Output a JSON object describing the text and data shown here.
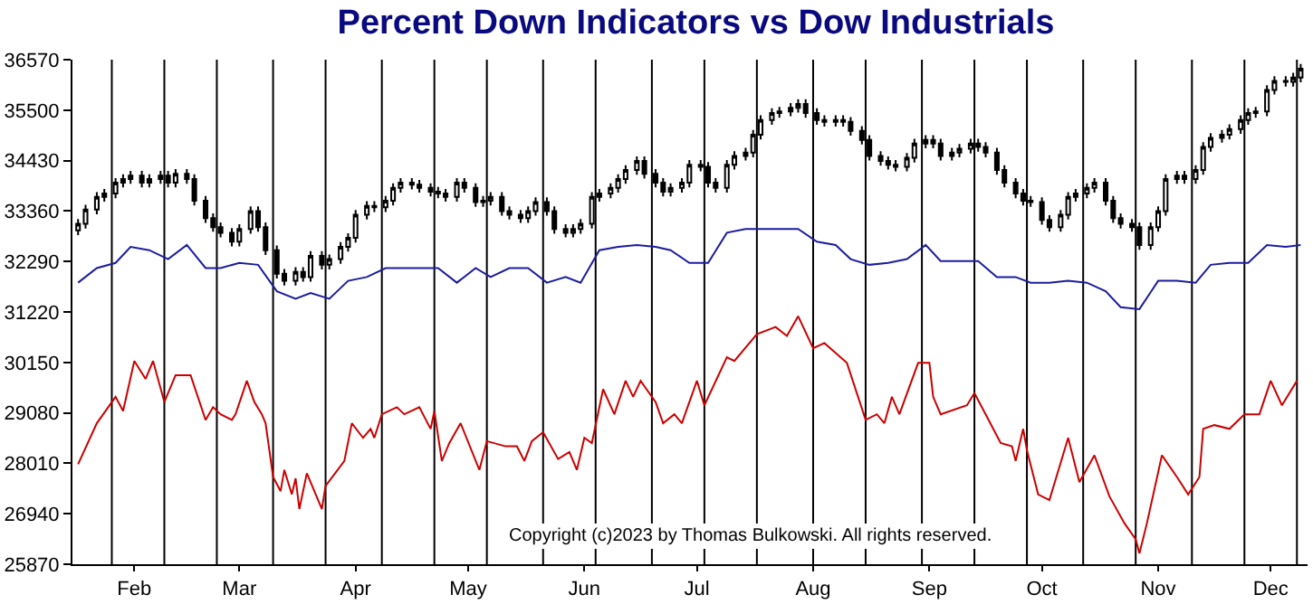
{
  "chart_data": {
    "type": "candlestick",
    "title": "Percent Down Indicators vs Dow Industrials",
    "annotations": [
      "Copyright (c)2023 by Thomas Bulkowski. All rights reserved."
    ],
    "color": "#000000",
    "xlim": [
      "2023-01-15T12:00",
      "2023-12-10T20:00"
    ],
    "xticks": [
      {
        "value": "2023-02-01",
        "label": "Feb"
      },
      {
        "value": "2023-03-01",
        "label": "Mar"
      },
      {
        "value": "2023-04-01",
        "label": "Apr"
      },
      {
        "value": "2023-05-01",
        "label": "May"
      },
      {
        "value": "2023-06-01",
        "label": "Jun"
      },
      {
        "value": "2023-07-01",
        "label": "Jul"
      },
      {
        "value": "2023-08-01",
        "label": "Aug"
      },
      {
        "value": "2023-09-01",
        "label": "Sep"
      },
      {
        "value": "2023-10-01",
        "label": "Oct"
      },
      {
        "value": "2023-11-01",
        "label": "Nov"
      },
      {
        "value": "2023-12-01",
        "label": "Dec"
      }
    ],
    "ylim": [
      25870,
      36570
    ],
    "yticks": [
      25870,
      26940,
      28010,
      29080,
      30150,
      31220,
      32290,
      33360,
      34430,
      35500,
      36570
    ],
    "ref_lines": [
      {
        "axis": "x",
        "value": "2023-01-26",
        "color": "#000000"
      },
      {
        "axis": "x",
        "value": "2023-02-09",
        "color": "#000000"
      },
      {
        "axis": "x",
        "value": "2023-02-23",
        "color": "#000000"
      },
      {
        "axis": "x",
        "value": "2023-03-10",
        "color": "#000000"
      },
      {
        "axis": "x",
        "value": "2023-03-24",
        "color": "#000000"
      },
      {
        "axis": "x",
        "value": "2023-04-08",
        "color": "#000000"
      },
      {
        "axis": "x",
        "value": "2023-04-22",
        "color": "#000000"
      },
      {
        "axis": "x",
        "value": "2023-05-06",
        "color": "#000000"
      },
      {
        "axis": "x",
        "value": "2023-05-21",
        "color": "#000000"
      },
      {
        "axis": "x",
        "value": "2023-06-04",
        "color": "#000000"
      },
      {
        "axis": "x",
        "value": "2023-06-19",
        "color": "#000000"
      },
      {
        "axis": "x",
        "value": "2023-07-03",
        "color": "#000000"
      },
      {
        "axis": "x",
        "value": "2023-07-17",
        "color": "#000000"
      },
      {
        "axis": "x",
        "value": "2023-08-01",
        "color": "#000000"
      },
      {
        "axis": "x",
        "value": "2023-08-15",
        "color": "#000000"
      },
      {
        "axis": "x",
        "value": "2023-08-30",
        "color": "#000000"
      },
      {
        "axis": "x",
        "value": "2023-09-13",
        "color": "#000000"
      },
      {
        "axis": "x",
        "value": "2023-09-27",
        "color": "#000000"
      },
      {
        "axis": "x",
        "value": "2023-10-12",
        "color": "#000000"
      },
      {
        "axis": "x",
        "value": "2023-10-26",
        "color": "#000000"
      },
      {
        "axis": "x",
        "value": "2023-11-10",
        "color": "#000000"
      },
      {
        "axis": "x",
        "value": "2023-11-24",
        "color": "#000000"
      },
      {
        "axis": "x",
        "value": "2023-12-08",
        "color": "#000000"
      }
    ],
    "x": [
      "2023-01-17",
      "2023-01-19",
      "2023-01-22",
      "2023-01-24",
      "2023-01-27",
      "2023-01-29",
      "2023-01-31",
      "2023-02-03",
      "2023-02-05",
      "2023-02-08",
      "2023-02-10",
      "2023-02-12",
      "2023-02-15",
      "2023-02-17",
      "2023-02-20",
      "2023-02-22",
      "2023-02-24",
      "2023-02-27",
      "2023-03-01",
      "2023-03-04",
      "2023-03-06",
      "2023-03-08",
      "2023-03-11",
      "2023-03-13",
      "2023-03-16",
      "2023-03-18",
      "2023-03-20",
      "2023-03-23",
      "2023-03-25",
      "2023-03-28",
      "2023-03-30",
      "2023-04-01",
      "2023-04-04",
      "2023-04-06",
      "2023-04-09",
      "2023-04-11",
      "2023-04-13",
      "2023-04-16",
      "2023-04-18",
      "2023-04-21",
      "2023-04-23",
      "2023-04-25",
      "2023-04-28",
      "2023-04-30",
      "2023-05-03",
      "2023-05-05",
      "2023-05-07",
      "2023-05-10",
      "2023-05-12",
      "2023-05-15",
      "2023-05-17",
      "2023-05-19",
      "2023-05-22",
      "2023-05-24",
      "2023-05-27",
      "2023-05-29",
      "2023-05-31",
      "2023-06-03",
      "2023-06-05",
      "2023-06-08",
      "2023-06-10",
      "2023-06-12",
      "2023-06-15",
      "2023-06-17",
      "2023-06-20",
      "2023-06-22",
      "2023-06-24",
      "2023-06-27",
      "2023-06-29",
      "2023-07-02",
      "2023-07-04",
      "2023-07-06",
      "2023-07-09",
      "2023-07-11",
      "2023-07-14",
      "2023-07-16",
      "2023-07-18",
      "2023-07-21",
      "2023-07-23",
      "2023-07-26",
      "2023-07-28",
      "2023-07-30",
      "2023-08-02",
      "2023-08-04",
      "2023-08-07",
      "2023-08-09",
      "2023-08-11",
      "2023-08-14",
      "2023-08-16",
      "2023-08-19",
      "2023-08-21",
      "2023-08-23",
      "2023-08-26",
      "2023-08-28",
      "2023-08-31",
      "2023-09-02",
      "2023-09-04",
      "2023-09-07",
      "2023-09-09",
      "2023-09-12",
      "2023-09-14",
      "2023-09-16",
      "2023-09-19",
      "2023-09-21",
      "2023-09-24",
      "2023-09-26",
      "2023-09-28",
      "2023-10-01",
      "2023-10-03",
      "2023-10-06",
      "2023-10-08",
      "2023-10-10",
      "2023-10-13",
      "2023-10-15",
      "2023-10-18",
      "2023-10-20",
      "2023-10-22",
      "2023-10-25",
      "2023-10-27",
      "2023-10-30",
      "2023-11-01",
      "2023-11-03",
      "2023-11-06",
      "2023-11-08",
      "2023-11-11",
      "2023-11-13",
      "2023-11-15",
      "2023-11-18",
      "2023-11-20",
      "2023-11-23",
      "2023-11-25",
      "2023-11-27",
      "2023-11-30",
      "2023-12-02",
      "2023-12-05",
      "2023-12-07",
      "2023-12-09"
    ],
    "ohlc": [
      [
        32950,
        33190,
        32850,
        33090
      ],
      [
        33090,
        33490,
        32990,
        33390
      ],
      [
        33390,
        33760,
        33290,
        33660
      ],
      [
        33660,
        33830,
        33560,
        33730
      ],
      [
        33730,
        34060,
        33630,
        33960
      ],
      [
        33960,
        34140,
        33860,
        34040
      ],
      [
        34040,
        34210,
        33940,
        34110
      ],
      [
        34110,
        34210,
        33860,
        33960
      ],
      [
        33960,
        34140,
        33860,
        34040
      ],
      [
        34040,
        34210,
        33940,
        34110
      ],
      [
        34110,
        34210,
        33860,
        33960
      ],
      [
        33960,
        34250,
        33860,
        34150
      ],
      [
        34150,
        34250,
        33940,
        34040
      ],
      [
        34040,
        34140,
        33480,
        33580
      ],
      [
        33580,
        33680,
        33110,
        33210
      ],
      [
        33210,
        33310,
        32920,
        33020
      ],
      [
        33020,
        33120,
        32800,
        32900
      ],
      [
        32900,
        33000,
        32610,
        32710
      ],
      [
        32710,
        33080,
        32610,
        32980
      ],
      [
        32980,
        33460,
        32880,
        33360
      ],
      [
        33360,
        33460,
        32920,
        33020
      ],
      [
        33020,
        33120,
        32430,
        32530
      ],
      [
        32530,
        32630,
        31930,
        32030
      ],
      [
        32030,
        32130,
        31780,
        31880
      ],
      [
        31880,
        32170,
        31780,
        32070
      ],
      [
        32070,
        32170,
        31860,
        31960
      ],
      [
        31960,
        32510,
        31860,
        32410
      ],
      [
        32410,
        32510,
        32120,
        32220
      ],
      [
        32220,
        32440,
        32120,
        32340
      ],
      [
        32340,
        32700,
        32240,
        32600
      ],
      [
        32600,
        32890,
        32500,
        32790
      ],
      [
        32790,
        33380,
        32690,
        33280
      ],
      [
        33280,
        33570,
        33180,
        33470
      ],
      [
        33470,
        33570,
        33340,
        33440
      ],
      [
        33440,
        33680,
        33340,
        33580
      ],
      [
        33580,
        33950,
        33480,
        33850
      ],
      [
        33850,
        34060,
        33750,
        33960
      ],
      [
        33960,
        34060,
        33820,
        33920
      ],
      [
        33920,
        34020,
        33750,
        33850
      ],
      [
        33850,
        33950,
        33670,
        33770
      ],
      [
        33770,
        33870,
        33630,
        33730
      ],
      [
        33730,
        33830,
        33560,
        33660
      ],
      [
        33660,
        34060,
        33560,
        33960
      ],
      [
        33960,
        34060,
        33750,
        33850
      ],
      [
        33850,
        33950,
        33450,
        33550
      ],
      [
        33550,
        33680,
        33450,
        33580
      ],
      [
        33580,
        33760,
        33480,
        33660
      ],
      [
        33660,
        33760,
        33260,
        33360
      ],
      [
        33360,
        33460,
        33180,
        33280
      ],
      [
        33280,
        33380,
        33110,
        33210
      ],
      [
        33210,
        33460,
        33110,
        33360
      ],
      [
        33360,
        33650,
        33260,
        33550
      ],
      [
        33550,
        33650,
        33260,
        33360
      ],
      [
        33360,
        33460,
        32880,
        32980
      ],
      [
        32980,
        33080,
        32800,
        32900
      ],
      [
        32900,
        33080,
        32800,
        32980
      ],
      [
        32980,
        33190,
        32880,
        33090
      ],
      [
        33090,
        33760,
        32990,
        33660
      ],
      [
        33660,
        33830,
        33560,
        33730
      ],
      [
        33730,
        33950,
        33630,
        33850
      ],
      [
        33850,
        34140,
        33750,
        34040
      ],
      [
        34040,
        34330,
        33940,
        34230
      ],
      [
        34230,
        34520,
        34130,
        34420
      ],
      [
        34420,
        34520,
        34050,
        34150
      ],
      [
        34150,
        34250,
        33860,
        33960
      ],
      [
        33960,
        34060,
        33670,
        33770
      ],
      [
        33770,
        33950,
        33670,
        33850
      ],
      [
        33850,
        34060,
        33750,
        33960
      ],
      [
        33960,
        34440,
        33860,
        34340
      ],
      [
        34340,
        34440,
        34200,
        34300
      ],
      [
        34300,
        34400,
        33860,
        33960
      ],
      [
        33960,
        34060,
        33750,
        33850
      ],
      [
        33850,
        34440,
        33750,
        34340
      ],
      [
        34340,
        34630,
        34240,
        34530
      ],
      [
        34530,
        34700,
        34430,
        34600
      ],
      [
        34600,
        35080,
        34500,
        34980
      ],
      [
        34980,
        35390,
        34880,
        35290
      ],
      [
        35290,
        35540,
        35190,
        35440
      ],
      [
        35440,
        35570,
        35340,
        35470
      ],
      [
        35470,
        35650,
        35370,
        35550
      ],
      [
        35550,
        35730,
        35450,
        35630
      ],
      [
        35630,
        35730,
        35340,
        35440
      ],
      [
        35440,
        35540,
        35190,
        35290
      ],
      [
        35290,
        35390,
        35150,
        35250
      ],
      [
        35250,
        35390,
        35150,
        35290
      ],
      [
        35290,
        35390,
        35150,
        35250
      ],
      [
        35250,
        35350,
        34960,
        35060
      ],
      [
        35060,
        35160,
        34770,
        34870
      ],
      [
        34870,
        34970,
        34430,
        34530
      ],
      [
        34530,
        34630,
        34320,
        34420
      ],
      [
        34420,
        34520,
        34240,
        34340
      ],
      [
        34340,
        34440,
        34200,
        34300
      ],
      [
        34300,
        34590,
        34200,
        34490
      ],
      [
        34490,
        34890,
        34390,
        34790
      ],
      [
        34790,
        34970,
        34690,
        34870
      ],
      [
        34870,
        34970,
        34690,
        34790
      ],
      [
        34790,
        34890,
        34430,
        34530
      ],
      [
        34530,
        34700,
        34430,
        34600
      ],
      [
        34600,
        34780,
        34500,
        34680
      ],
      [
        34680,
        34890,
        34580,
        34790
      ],
      [
        34790,
        34890,
        34620,
        34720
      ],
      [
        34720,
        34820,
        34500,
        34600
      ],
      [
        34600,
        34700,
        34130,
        34230
      ],
      [
        34230,
        34330,
        33860,
        33960
      ],
      [
        33960,
        34060,
        33630,
        33730
      ],
      [
        33730,
        33830,
        33480,
        33580
      ],
      [
        33580,
        33680,
        33450,
        33550
      ],
      [
        33550,
        33650,
        33070,
        33170
      ],
      [
        33170,
        33270,
        32920,
        33020
      ],
      [
        33020,
        33380,
        32920,
        33280
      ],
      [
        33280,
        33760,
        33180,
        33660
      ],
      [
        33660,
        33830,
        33560,
        33730
      ],
      [
        33730,
        33950,
        33630,
        33850
      ],
      [
        33850,
        34060,
        33750,
        33960
      ],
      [
        33960,
        34060,
        33480,
        33580
      ],
      [
        33580,
        33680,
        33110,
        33210
      ],
      [
        33210,
        33310,
        32990,
        33090
      ],
      [
        33090,
        33190,
        32920,
        33020
      ],
      [
        33020,
        33120,
        32540,
        32640
      ],
      [
        32640,
        33120,
        32540,
        33020
      ],
      [
        33020,
        33460,
        32920,
        33360
      ],
      [
        33360,
        34140,
        33260,
        34040
      ],
      [
        34040,
        34210,
        33940,
        34110
      ],
      [
        34110,
        34210,
        33940,
        34040
      ],
      [
        34040,
        34330,
        33940,
        34230
      ],
      [
        34230,
        34820,
        34130,
        34720
      ],
      [
        34720,
        35010,
        34620,
        34910
      ],
      [
        34910,
        35080,
        34810,
        34980
      ],
      [
        34980,
        35200,
        34880,
        35100
      ],
      [
        35100,
        35390,
        35000,
        35290
      ],
      [
        35290,
        35540,
        35190,
        35440
      ],
      [
        35440,
        35570,
        35340,
        35470
      ],
      [
        35470,
        36030,
        35370,
        35930
      ],
      [
        35930,
        36220,
        35830,
        36120
      ],
      [
        36120,
        36220,
        36000,
        36100
      ],
      [
        36100,
        36290,
        36000,
        36190
      ],
      [
        36190,
        36480,
        36090,
        36380
      ]
    ],
    "series": [
      {
        "type": "line",
        "color": "#1c1ca0",
        "x": [
          "2023-01-17",
          "2023-01-22",
          "2023-01-27",
          "2023-01-31",
          "2023-02-05",
          "2023-02-10",
          "2023-02-15",
          "2023-02-20",
          "2023-02-24",
          "2023-03-01",
          "2023-03-06",
          "2023-03-11",
          "2023-03-16",
          "2023-03-20",
          "2023-03-25",
          "2023-03-30",
          "2023-04-04",
          "2023-04-09",
          "2023-04-13",
          "2023-04-18",
          "2023-04-23",
          "2023-04-28",
          "2023-05-03",
          "2023-05-07",
          "2023-05-12",
          "2023-05-17",
          "2023-05-22",
          "2023-05-27",
          "2023-05-31",
          "2023-06-05",
          "2023-06-10",
          "2023-06-15",
          "2023-06-20",
          "2023-06-24",
          "2023-06-29",
          "2023-07-04",
          "2023-07-09",
          "2023-07-14",
          "2023-07-18",
          "2023-07-23",
          "2023-07-28",
          "2023-08-02",
          "2023-08-07",
          "2023-08-11",
          "2023-08-16",
          "2023-08-21",
          "2023-08-26",
          "2023-08-31",
          "2023-09-04",
          "2023-09-09",
          "2023-09-14",
          "2023-09-19",
          "2023-09-24",
          "2023-09-28",
          "2023-10-03",
          "2023-10-08",
          "2023-10-13",
          "2023-10-18",
          "2023-10-22",
          "2023-10-27",
          "2023-11-01",
          "2023-11-06",
          "2023-11-11",
          "2023-11-15",
          "2023-11-20",
          "2023-11-25",
          "2023-11-30",
          "2023-12-05",
          "2023-12-09"
        ],
        "values": [
          31840,
          32150,
          32260,
          32600,
          32530,
          32340,
          32640,
          32150,
          32150,
          32260,
          32220,
          31660,
          31500,
          31620,
          31500,
          31880,
          31960,
          32150,
          32150,
          32150,
          32150,
          31840,
          32150,
          31960,
          32150,
          32150,
          31840,
          31960,
          31840,
          32530,
          32600,
          32640,
          32600,
          32530,
          32260,
          32260,
          32900,
          32980,
          32980,
          32980,
          32980,
          32710,
          32640,
          32340,
          32220,
          32260,
          32340,
          32640,
          32300,
          32300,
          32300,
          31960,
          31960,
          31840,
          31840,
          31880,
          31840,
          31660,
          31320,
          31280,
          31880,
          31880,
          31840,
          32220,
          32260,
          32260,
          32640,
          32600,
          32640
        ]
      },
      {
        "type": "line",
        "color": "#cc0000",
        "x": [
          "2023-01-17",
          "2023-01-22",
          "2023-01-27",
          "2023-01-29",
          "2023-02-01",
          "2023-02-04",
          "2023-02-06",
          "2023-02-09",
          "2023-02-12",
          "2023-02-16",
          "2023-02-20",
          "2023-02-22",
          "2023-02-24",
          "2023-02-27",
          "2023-02-28",
          "2023-03-03",
          "2023-03-05",
          "2023-03-07",
          "2023-03-08",
          "2023-03-10",
          "2023-03-12",
          "2023-03-13",
          "2023-03-15",
          "2023-03-16",
          "2023-03-17",
          "2023-03-19",
          "2023-03-23",
          "2023-03-24",
          "2023-03-29",
          "2023-03-31",
          "2023-04-03",
          "2023-04-05",
          "2023-04-06",
          "2023-04-08",
          "2023-04-12",
          "2023-04-14",
          "2023-04-18",
          "2023-04-21",
          "2023-04-22",
          "2023-04-24",
          "2023-04-26",
          "2023-04-29",
          "2023-05-04",
          "2023-05-06",
          "2023-05-11",
          "2023-05-14",
          "2023-05-16",
          "2023-05-18",
          "2023-05-21",
          "2023-05-25",
          "2023-05-28",
          "2023-05-30",
          "2023-06-01",
          "2023-06-03",
          "2023-06-06",
          "2023-06-09",
          "2023-06-12",
          "2023-06-14",
          "2023-06-16",
          "2023-06-20",
          "2023-06-22",
          "2023-06-25",
          "2023-06-27",
          "2023-07-01",
          "2023-07-03",
          "2023-07-09",
          "2023-07-11",
          "2023-07-17",
          "2023-07-22",
          "2023-07-25",
          "2023-07-28",
          "2023-08-01",
          "2023-08-04",
          "2023-08-10",
          "2023-08-15",
          "2023-08-18",
          "2023-08-20",
          "2023-08-22",
          "2023-08-24",
          "2023-08-29",
          "2023-09-01",
          "2023-09-02",
          "2023-09-04",
          "2023-09-11",
          "2023-09-13",
          "2023-09-16",
          "2023-09-20",
          "2023-09-23",
          "2023-09-24",
          "2023-09-26",
          "2023-09-27",
          "2023-09-30",
          "2023-10-03",
          "2023-10-08",
          "2023-10-11",
          "2023-10-15",
          "2023-10-19",
          "2023-10-23",
          "2023-10-26",
          "2023-10-27",
          "2023-10-29",
          "2023-11-02",
          "2023-11-06",
          "2023-11-09",
          "2023-11-12",
          "2023-11-13",
          "2023-11-16",
          "2023-11-20",
          "2023-11-24",
          "2023-11-28",
          "2023-12-01",
          "2023-12-04",
          "2023-12-08"
        ],
        "values": [
          27990,
          28860,
          29420,
          29120,
          30180,
          29800,
          30180,
          29310,
          29880,
          29880,
          28930,
          29200,
          29050,
          28930,
          29050,
          29760,
          29310,
          29050,
          28860,
          27720,
          27420,
          27870,
          27350,
          27690,
          27040,
          27800,
          27040,
          27530,
          28060,
          28860,
          28550,
          28740,
          28550,
          29050,
          29200,
          29050,
          29200,
          28740,
          29120,
          28060,
          28440,
          28860,
          27870,
          28480,
          28370,
          28370,
          28060,
          28480,
          28670,
          28100,
          28250,
          27870,
          28550,
          28440,
          29580,
          29050,
          29760,
          29420,
          29760,
          29310,
          28860,
          29050,
          28860,
          29760,
          29240,
          30260,
          30180,
          30750,
          30900,
          30710,
          31130,
          30450,
          30560,
          30140,
          28930,
          29050,
          28860,
          29420,
          29050,
          30140,
          30140,
          29420,
          29050,
          29240,
          29500,
          29050,
          28440,
          28370,
          28060,
          28740,
          28290,
          27350,
          27230,
          28550,
          27610,
          28180,
          27310,
          26740,
          26400,
          26100,
          26740,
          28180,
          27720,
          27350,
          27720,
          28740,
          28820,
          28740,
          29050,
          29050,
          29760,
          29240,
          29760
        ]
      }
    ]
  }
}
